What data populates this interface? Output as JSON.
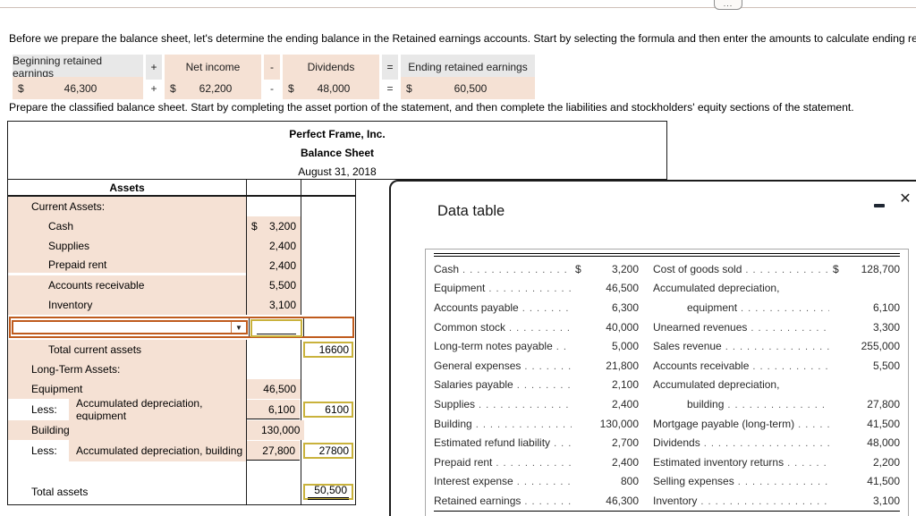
{
  "page": {
    "more_button": "...",
    "instruction1": "Before we prepare the balance sheet, let's determine the ending balance in the Retained earnings accounts. Start by selecting the formula and then enter the amounts to calculate ending retained earnings.",
    "instruction2": "Prepare the classified balance sheet. Start by completing the asset portion of the statement, and then complete the liabilities and stockholders' equity sections of the statement."
  },
  "colors": {
    "answer_background": "#f5e1d4",
    "formula_header_background": "#e8e8e8",
    "input_box_border": "#c9b23c",
    "dropdown_border": "#bf5b1d"
  },
  "icons": {
    "dropdown_arrow": "▼",
    "minimize": "—",
    "close": "✕"
  },
  "formula": {
    "header": [
      {
        "label": "Beginning retained earnings"
      },
      {
        "label": "+"
      },
      {
        "label": "Net income"
      },
      {
        "label": "-"
      },
      {
        "label": "Dividends"
      },
      {
        "label": "="
      },
      {
        "label": "Ending retained earnings"
      }
    ],
    "values": [
      {
        "currency": "$",
        "amount": "46,300"
      },
      {
        "op": "+"
      },
      {
        "currency": "$",
        "amount": "62,200"
      },
      {
        "op": "-"
      },
      {
        "currency": "$",
        "amount": "48,000"
      },
      {
        "op": "="
      },
      {
        "currency": "$",
        "amount": "60,500"
      }
    ]
  },
  "statement": {
    "company": "Perfect Frame, Inc.",
    "title": "Balance Sheet",
    "date": "August 31, 2018",
    "section_header": "Assets",
    "rows": [
      {
        "type": "section",
        "indent": 1,
        "label": "Current Assets:"
      },
      {
        "type": "account",
        "indent": 2,
        "label": "Cash",
        "currency": "$",
        "amount": "3,200"
      },
      {
        "type": "account",
        "indent": 2,
        "label": "Supplies",
        "amount": "2,400"
      },
      {
        "type": "account",
        "indent": 2,
        "label": "Prepaid rent",
        "amount": "2,400",
        "gap_after": true
      },
      {
        "type": "account",
        "indent": 2,
        "label": "Accounts receivable",
        "amount": "5,500"
      },
      {
        "type": "account",
        "indent": 2,
        "label": "Inventory",
        "amount": "3,100"
      },
      {
        "type": "dropdown"
      },
      {
        "type": "total",
        "indent": 2,
        "label": "Total current assets",
        "box": "16600"
      },
      {
        "type": "section",
        "indent": 1,
        "label": "Long-Term Assets:"
      },
      {
        "type": "account",
        "indent": 1,
        "label": "Equipment",
        "amount": "46,500"
      },
      {
        "type": "less",
        "prefix": "Less:",
        "label": "Accumulated depreciation, equipment",
        "amount": "6,100",
        "underline": true,
        "box": "6100"
      },
      {
        "type": "account",
        "indent": 1,
        "label": "Building",
        "amount": "130,000"
      },
      {
        "type": "less",
        "prefix": "Less:",
        "label": "Accumulated depreciation, building",
        "amount": "27,800",
        "underline": true,
        "box": "27800"
      },
      {
        "type": "spacer"
      },
      {
        "type": "grandtotal",
        "label": "Total assets",
        "box": "50,500",
        "box_double_rule": true
      }
    ]
  },
  "data_table": {
    "title": "Data table",
    "rows": [
      {
        "left": {
          "label": "Cash",
          "currency": "$",
          "value": "3,200"
        },
        "right": {
          "label": "Cost of goods sold",
          "currency": "$",
          "value": "128,700"
        }
      },
      {
        "left": {
          "label": "Equipment",
          "value": "46,500"
        },
        "right": {
          "label": "Accumulated depreciation,"
        }
      },
      {
        "left": {
          "label": "Accounts payable",
          "value": "6,300"
        },
        "right": {
          "label": "equipment",
          "indent": true,
          "value": "6,100"
        }
      },
      {
        "left": {
          "label": "Common stock",
          "value": "40,000"
        },
        "right": {
          "label": "Unearned revenues",
          "value": "3,300"
        }
      },
      {
        "left": {
          "label": "Long-term notes payable",
          "value": "5,000"
        },
        "right": {
          "label": "Sales revenue",
          "value": "255,000"
        }
      },
      {
        "left": {
          "label": "General expenses",
          "value": "21,800"
        },
        "right": {
          "label": "Accounts receivable",
          "value": "5,500"
        }
      },
      {
        "left": {
          "label": "Salaries payable",
          "value": "2,100"
        },
        "right": {
          "label": "Accumulated depreciation,"
        }
      },
      {
        "left": {
          "label": "Supplies",
          "value": "2,400"
        },
        "right": {
          "label": "building",
          "indent": true,
          "value": "27,800"
        }
      },
      {
        "left": {
          "label": "Building",
          "value": "130,000"
        },
        "right": {
          "label": "Mortgage payable (long-term)",
          "value": "41,500"
        }
      },
      {
        "left": {
          "label": "Estimated refund liability",
          "value": "2,700"
        },
        "right": {
          "label": "Dividends",
          "value": "48,000"
        }
      },
      {
        "left": {
          "label": "Prepaid rent",
          "value": "2,400"
        },
        "right": {
          "label": "Estimated inventory returns",
          "value": "2,200"
        }
      },
      {
        "left": {
          "label": "Interest expense",
          "value": "800"
        },
        "right": {
          "label": "Selling expenses",
          "value": "41,500"
        }
      },
      {
        "left": {
          "label": "Retained earnings",
          "value": "46,300"
        },
        "right": {
          "label": "Inventory",
          "value": "3,100"
        }
      }
    ]
  }
}
